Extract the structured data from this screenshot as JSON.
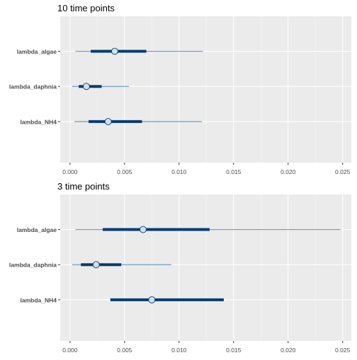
{
  "chart_data": [
    {
      "type": "interval",
      "title": "10 time points",
      "xlim": [
        -0.0009,
        0.0258
      ],
      "xticks": [
        0,
        0.005,
        0.01,
        0.015,
        0.02,
        0.025
      ],
      "xtick_labels": [
        "0.000",
        "0.005",
        "0.010",
        "0.015",
        "0.020",
        "0.025"
      ],
      "grid": true,
      "parameters": [
        {
          "name": "lambda_algae",
          "median": 0.0041,
          "inner": [
            0.0019,
            0.007
          ],
          "outer": [
            0.0005,
            0.0122
          ]
        },
        {
          "name": "lambda_daphnia",
          "median": 0.0015,
          "inner": [
            0.0008,
            0.0029
          ],
          "outer": [
            0.0002,
            0.0054
          ]
        },
        {
          "name": "lambda_NH4",
          "median": 0.0035,
          "inner": [
            0.0017,
            0.0066
          ],
          "outer": [
            0.0004,
            0.0121
          ]
        }
      ]
    },
    {
      "type": "interval",
      "title": "3 time points",
      "xlim": [
        -0.0009,
        0.0258
      ],
      "xticks": [
        0,
        0.005,
        0.01,
        0.015,
        0.02,
        0.025
      ],
      "xtick_labels": [
        "0.000",
        "0.005",
        "0.010",
        "0.015",
        "0.020",
        "0.025"
      ],
      "grid": true,
      "parameters": [
        {
          "name": "lambda_algae",
          "median": 0.0067,
          "inner": [
            0.003,
            0.0128
          ],
          "outer": [
            0.0005,
            0.0248
          ]
        },
        {
          "name": "lambda_daphnia",
          "median": 0.0024,
          "inner": [
            0.001,
            0.0047
          ],
          "outer": [
            0.0002,
            0.0093
          ]
        },
        {
          "name": "lambda_NH4",
          "median": 0.0075,
          "inner": [
            0.0037,
            0.0141
          ],
          "outer": [
            0.0037,
            0.0141
          ]
        }
      ]
    }
  ],
  "colors": {
    "panel_bg": "#EBEBEB",
    "grid_major": "#FFFFFF",
    "grid_minor": "#F5F5F5",
    "outer_interval": "#6C9BC8",
    "inner_interval": "#073B72",
    "point_fill": "#D1E1EC",
    "point_stroke": "#073B72",
    "axis_text": "#4D4D4D",
    "title_text": "#000000"
  }
}
